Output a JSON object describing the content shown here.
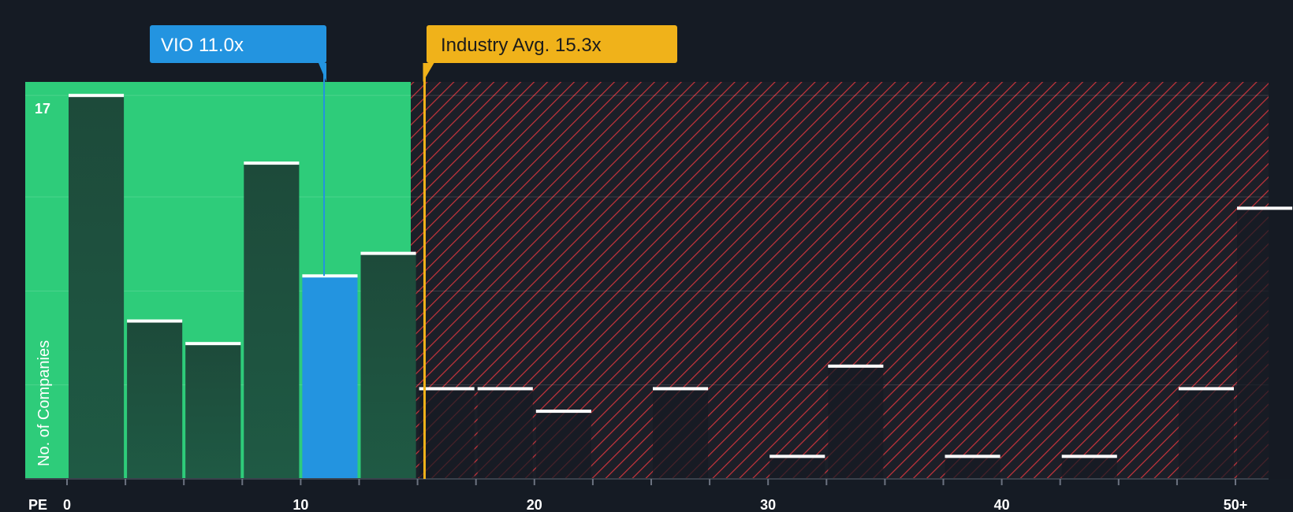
{
  "chart_data": {
    "type": "bar",
    "title": "",
    "xlabel": "PE",
    "ylabel": "No. of Companies",
    "xlim": [
      0,
      52
    ],
    "ylim": [
      0,
      17.6
    ],
    "x_ticks": [
      {
        "value": 0,
        "label": "0"
      },
      {
        "value": 10,
        "label": "10"
      },
      {
        "value": 20,
        "label": "20"
      },
      {
        "value": 30,
        "label": "30"
      },
      {
        "value": 40,
        "label": "40"
      },
      {
        "value": 50,
        "label": "50+"
      }
    ],
    "y_max_label": "17",
    "y_max_value": 17,
    "bin_width": 2.5,
    "bins": [
      {
        "start": 0,
        "value": 17
      },
      {
        "start": 2.5,
        "value": 7
      },
      {
        "start": 5,
        "value": 6
      },
      {
        "start": 7.5,
        "value": 14
      },
      {
        "start": 10,
        "value": 9,
        "highlight": true
      },
      {
        "start": 12.5,
        "value": 10
      },
      {
        "start": 15,
        "value": 4
      },
      {
        "start": 17.5,
        "value": 4
      },
      {
        "start": 20,
        "value": 3
      },
      {
        "start": 22.5,
        "value": 0
      },
      {
        "start": 25,
        "value": 4
      },
      {
        "start": 27.5,
        "value": 0
      },
      {
        "start": 30,
        "value": 1
      },
      {
        "start": 32.5,
        "value": 5
      },
      {
        "start": 35,
        "value": 0
      },
      {
        "start": 37.5,
        "value": 1
      },
      {
        "start": 40,
        "value": 0
      },
      {
        "start": 42.5,
        "value": 1
      },
      {
        "start": 45,
        "value": 0
      },
      {
        "start": 47.5,
        "value": 4
      },
      {
        "start": 50,
        "value": 12
      }
    ],
    "company": {
      "label": "VIO 11.0x",
      "value": 11.0
    },
    "industry_avg": {
      "label": "Industry Avg. 15.3x",
      "value": 15.3
    },
    "colors": {
      "background": "#151b24",
      "fair_zone": "#2ecc7a",
      "bar_fair": "#1d4a3a",
      "bar_over": "#1f2530",
      "highlight": "#2394e0",
      "company_callout": "#2394e0",
      "industry_callout": "#f0b21a",
      "hatch": "#c8343c"
    }
  }
}
